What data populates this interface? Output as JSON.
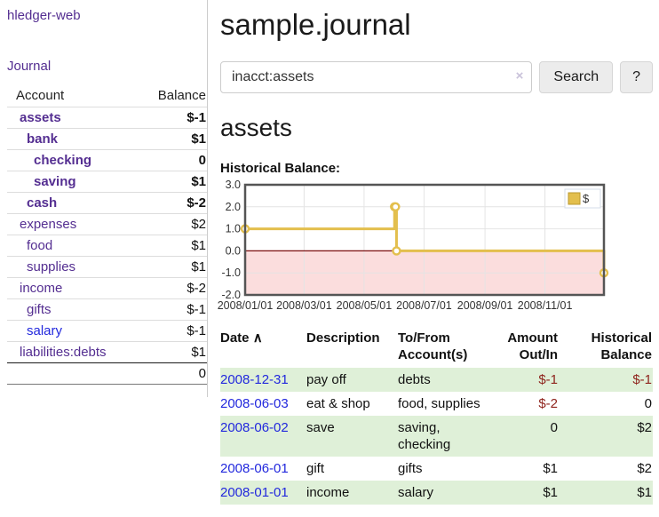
{
  "colors": {
    "link_purple": "#542e91",
    "link_blue": "#2228dd",
    "negative_strong": "#8f241d",
    "negative_muted": "#c08080",
    "row_highlight_green": "#dff0d8",
    "chart_line_gold": "#e3bf4d",
    "chart_negative_band": "#fbdddd",
    "chart_zero_line": "#7a0d0d",
    "chart_grid": "#e4e4e4",
    "chart_border": "#555555"
  },
  "sidebar": {
    "brand": "hledger-web",
    "nav": [
      {
        "label": "Journal"
      }
    ],
    "table": {
      "account_header": "Account",
      "balance_header": "Balance",
      "rows": [
        {
          "name": "assets",
          "balance": "$-1",
          "depth": 1,
          "bold": true,
          "balance_tone": "neg-strong",
          "link_tone": "purple"
        },
        {
          "name": "bank",
          "balance": "$1",
          "depth": 2,
          "bold": true,
          "balance_tone": "normal",
          "link_tone": "purple"
        },
        {
          "name": "checking",
          "balance": "0",
          "depth": 3,
          "bold": true,
          "balance_tone": "normal",
          "link_tone": "purple"
        },
        {
          "name": "saving",
          "balance": "$1",
          "depth": 3,
          "bold": true,
          "balance_tone": "normal",
          "link_tone": "purple"
        },
        {
          "name": "cash",
          "balance": "$-2",
          "depth": 2,
          "bold": true,
          "balance_tone": "neg-strong",
          "link_tone": "purple"
        },
        {
          "name": "expenses",
          "balance": "$2",
          "depth": 1,
          "bold": false,
          "balance_tone": "normal",
          "link_tone": "purple"
        },
        {
          "name": "food",
          "balance": "$1",
          "depth": 2,
          "bold": false,
          "balance_tone": "normal",
          "link_tone": "purple"
        },
        {
          "name": "supplies",
          "balance": "$1",
          "depth": 2,
          "bold": false,
          "balance_tone": "normal",
          "link_tone": "purple"
        },
        {
          "name": "income",
          "balance": "$-2",
          "depth": 1,
          "bold": false,
          "balance_tone": "neg-muted",
          "link_tone": "purple"
        },
        {
          "name": "gifts",
          "balance": "$-1",
          "depth": 2,
          "bold": false,
          "balance_tone": "neg-muted",
          "link_tone": "purple"
        },
        {
          "name": "salary",
          "balance": "$-1",
          "depth": 2,
          "bold": false,
          "balance_tone": "neg-muted",
          "link_tone": "blue"
        },
        {
          "name": "liabilities:debts",
          "balance": "$1",
          "depth": 1,
          "bold": false,
          "balance_tone": "normal",
          "link_tone": "purple"
        }
      ],
      "total": "0"
    }
  },
  "main": {
    "title": "sample.journal",
    "search": {
      "value": "inacct:assets",
      "clear_icon": "×",
      "search_button": "Search",
      "help_button": "?"
    },
    "account_heading": "assets",
    "section_label": "Historical Balance:"
  },
  "chart_data": {
    "type": "line",
    "title": "Historical Balance",
    "step": true,
    "x_is_time": true,
    "xlim": [
      "2008/01/01",
      "2008/12/31"
    ],
    "ylim": [
      -2,
      3
    ],
    "ytick_values": [
      3,
      2,
      1,
      0,
      -1,
      -2
    ],
    "ytick_labels": [
      "3.0",
      "2.0",
      "1.0",
      "0.0",
      "-1.0",
      "-2.0"
    ],
    "xticks": [
      {
        "label": "2008/01/01",
        "date": "2008/01/01"
      },
      {
        "label": "2008/03/01",
        "date": "2008/03/01"
      },
      {
        "label": "2008/05/01",
        "date": "2008/05/01"
      },
      {
        "label": "2008/07/01",
        "date": "2008/07/01"
      },
      {
        "label": "2008/09/01",
        "date": "2008/09/01"
      },
      {
        "label": "2008/11/01",
        "date": "2008/11/01"
      }
    ],
    "legend": {
      "position": "top-right",
      "entries": [
        {
          "label": "$"
        }
      ]
    },
    "grid": true,
    "negative_region_shaded": true,
    "series": [
      {
        "name": "$",
        "points": [
          {
            "date": "2008/01/01",
            "value": 1
          },
          {
            "date": "2008/06/01",
            "value": 2
          },
          {
            "date": "2008/06/02",
            "value": 2
          },
          {
            "date": "2008/06/03",
            "value": 0
          },
          {
            "date": "2008/12/31",
            "value": -1
          }
        ]
      }
    ]
  },
  "register": {
    "headers": {
      "date": "Date",
      "sort_icon": "∧",
      "description": "Description",
      "accounts_line1": "To/From",
      "accounts_line2": "Account(s)",
      "amount_line1": "Amount",
      "amount_line2": "Out/In",
      "balance_line1": "Historical",
      "balance_line2": "Balance"
    },
    "rows": [
      {
        "date": "2008-12-31",
        "description": "pay off",
        "accounts": "debts",
        "amount": "$-1",
        "balance": "$-1",
        "amount_neg": true,
        "balance_neg": true,
        "highlight": true
      },
      {
        "date": "2008-06-03",
        "description": "eat & shop",
        "accounts": "food, supplies",
        "amount": "$-2",
        "balance": "0",
        "amount_neg": true,
        "balance_neg": false,
        "highlight": false
      },
      {
        "date": "2008-06-02",
        "description": "save",
        "accounts": "saving, checking",
        "amount": "0",
        "balance": "$2",
        "amount_neg": false,
        "balance_neg": false,
        "highlight": true
      },
      {
        "date": "2008-06-01",
        "description": "gift",
        "accounts": "gifts",
        "amount": "$1",
        "balance": "$2",
        "amount_neg": false,
        "balance_neg": false,
        "highlight": false
      },
      {
        "date": "2008-01-01",
        "description": "income",
        "accounts": "salary",
        "amount": "$1",
        "balance": "$1",
        "amount_neg": false,
        "balance_neg": false,
        "highlight": true
      }
    ]
  }
}
